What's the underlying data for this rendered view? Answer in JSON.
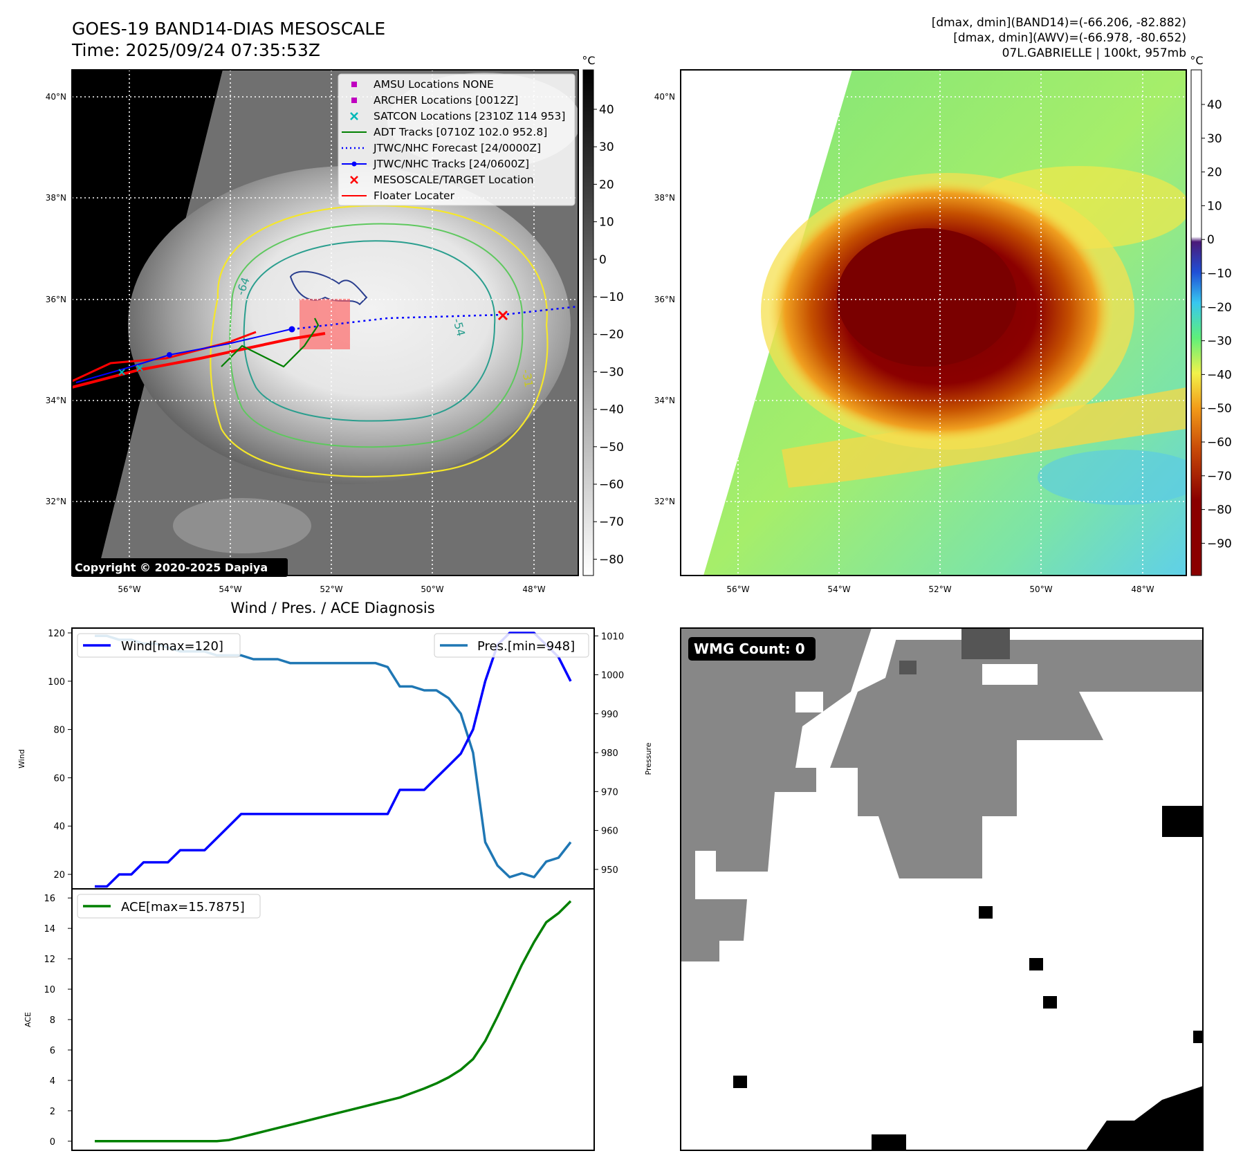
{
  "header": {
    "title_line1": "GOES-19 BAND14-DIAS MESOSCALE",
    "title_line2": "Time: 2025/09/24 07:35:53Z",
    "right_line1": "[dmax, dmin](BAND14)=(-66.206, -82.882)",
    "right_line2": "[dmax, dmin](AWV)=(-66.978, -80.652)",
    "right_line3": "07L.GABRIELLE | 100kt, 957mb"
  },
  "map": {
    "lat_ticks": [
      "40°N",
      "38°N",
      "36°N",
      "34°N",
      "32°N"
    ],
    "lon_ticks": [
      "56°W",
      "54°W",
      "52°W",
      "50°W",
      "48°W"
    ],
    "copyright": "Copyright © 2020-2025 Dapiya",
    "contour_labels": [
      "-64",
      "-54",
      "-31"
    ],
    "legend": [
      {
        "label": "AMSU Locations NONE",
        "marker": "square",
        "color": "#c000c0"
      },
      {
        "label": "ARCHER Locations [0012Z]",
        "marker": "square",
        "color": "#c000c0"
      },
      {
        "label": "SATCON Locations [2310Z 114 953]",
        "marker": "x",
        "color": "#00b8b8"
      },
      {
        "label": "ADT Tracks [0710Z 102.0 952.8]",
        "marker": "line",
        "color": "#008000"
      },
      {
        "label": "JTWC/NHC Forecast [24/0000Z]",
        "marker": "dotted",
        "color": "#0000ff"
      },
      {
        "label": "JTWC/NHC Tracks [24/0600Z]",
        "marker": "line-dot",
        "color": "#0000ff"
      },
      {
        "label": "MESOSCALE/TARGET Location",
        "marker": "x",
        "color": "#ff0000"
      },
      {
        "label": "Floater Locater",
        "marker": "line",
        "color": "#ff0000"
      }
    ],
    "colorbar_unit": "°C",
    "colorbar1_ticks": [
      "40",
      "30",
      "20",
      "10",
      "0",
      "−10",
      "−20",
      "−30",
      "−40",
      "−50",
      "−60",
      "−70",
      "−80"
    ],
    "colorbar2_ticks": [
      "40",
      "30",
      "20",
      "10",
      "0",
      "−10",
      "−20",
      "−30",
      "−40",
      "−50",
      "−60",
      "−70",
      "−80",
      "−90"
    ]
  },
  "chart_data": [
    {
      "type": "line",
      "title": "Wind / Pres. / ACE Diagnosis",
      "ylabel": "Wind",
      "ylabel_right": "Pressure",
      "ylim": [
        14,
        122
      ],
      "ylim_right": [
        945,
        1012
      ],
      "yticks": [
        "120",
        "100",
        "80",
        "60",
        "40",
        "20"
      ],
      "yticks_right": [
        "1010",
        "1000",
        "990",
        "980",
        "970",
        "960",
        "950"
      ],
      "series": [
        {
          "name": "Wind[max=120]",
          "color": "#0000ff",
          "values": [
            15,
            15,
            20,
            20,
            25,
            25,
            25,
            30,
            30,
            30,
            35,
            40,
            45,
            45,
            45,
            45,
            45,
            45,
            45,
            45,
            45,
            45,
            45,
            45,
            45,
            55,
            55,
            55,
            60,
            65,
            70,
            80,
            100,
            115,
            120,
            120,
            120,
            115,
            110,
            100
          ]
        },
        {
          "name": "Pres.[min=948]",
          "color": "#1f77b4",
          "axis": "right",
          "values": [
            1010,
            1010,
            1009,
            1009,
            1008,
            1008,
            1007,
            1006,
            1006,
            1006,
            1005,
            1005,
            1005,
            1004,
            1004,
            1004,
            1003,
            1003,
            1003,
            1003,
            1003,
            1003,
            1003,
            1003,
            1002,
            997,
            997,
            996,
            996,
            994,
            990,
            980,
            957,
            951,
            948,
            949,
            948,
            952,
            953,
            957
          ]
        }
      ]
    },
    {
      "type": "line",
      "ylabel": "ACE",
      "ylim": [
        -0.6,
        16.6
      ],
      "yticks": [
        "16",
        "14",
        "12",
        "10",
        "8",
        "6",
        "4",
        "2",
        "0"
      ],
      "series": [
        {
          "name": "ACE[max=15.7875]",
          "color": "#008000",
          "values": [
            0,
            0,
            0,
            0,
            0,
            0,
            0,
            0,
            0,
            0,
            0,
            0.08,
            0.27,
            0.47,
            0.67,
            0.87,
            1.07,
            1.27,
            1.47,
            1.67,
            1.87,
            2.07,
            2.27,
            2.47,
            2.67,
            2.87,
            3.17,
            3.47,
            3.8,
            4.2,
            4.7,
            5.4,
            6.6,
            8.2,
            9.9,
            11.6,
            13.1,
            14.4,
            15.0,
            15.79
          ]
        }
      ]
    }
  ],
  "wmg": {
    "badge": "WMG Count: 0"
  }
}
